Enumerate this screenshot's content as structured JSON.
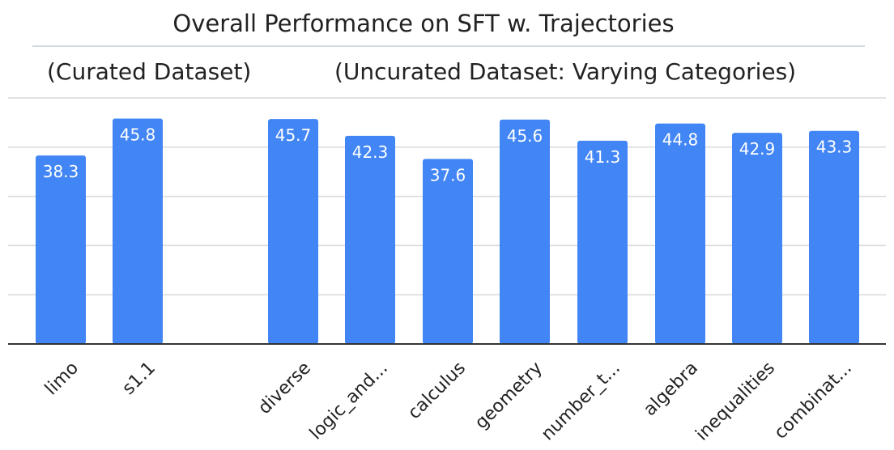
{
  "chart_data": {
    "type": "bar",
    "title": "Overall Performance on SFT w. Trajectories",
    "group_labels": [
      "(Curated Dataset)",
      "(Uncurated Dataset: Varying Categories)"
    ],
    "categories": [
      "limo",
      "s1.1",
      "diverse",
      "logic_and...",
      "calculus",
      "geometry",
      "number_t...",
      "algebra",
      "inequalities",
      "combinat..."
    ],
    "values": [
      38.3,
      45.8,
      45.7,
      42.3,
      37.6,
      45.6,
      41.3,
      44.8,
      42.9,
      43.3
    ],
    "value_labels": [
      "38.3",
      "45.8",
      "45.7",
      "42.3",
      "37.6",
      "45.6",
      "41.3",
      "44.8",
      "42.9",
      "43.3"
    ],
    "ylim": [
      0,
      50
    ],
    "grid": true,
    "legend": "none",
    "bar_color": "#4285f4"
  }
}
